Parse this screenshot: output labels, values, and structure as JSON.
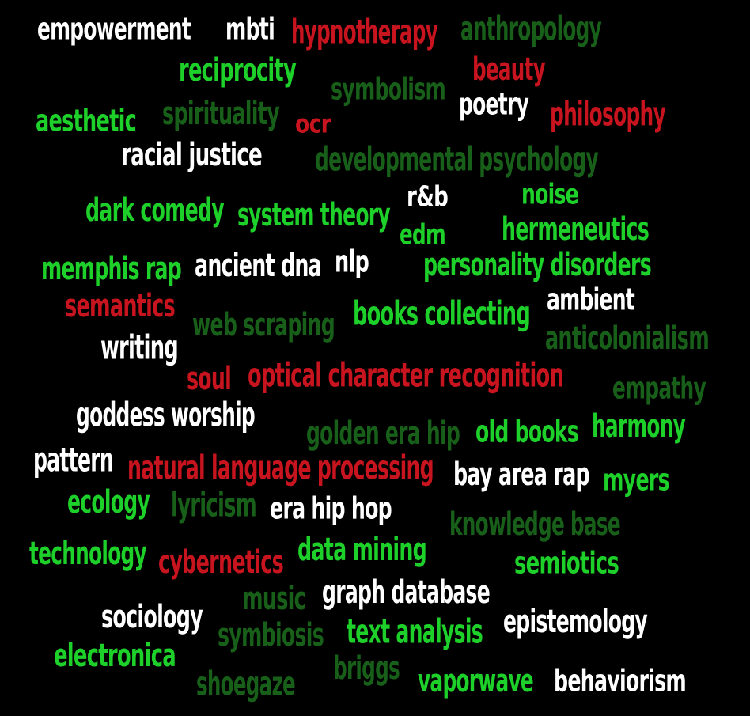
{
  "colors": {
    "background": "#000000",
    "white": "#ffffff",
    "red": "#c8141e",
    "lime": "#1ed02a",
    "dark": "#18601a"
  },
  "words": [
    {
      "id": "empowerment",
      "text": "empowerment",
      "color": "white"
    },
    {
      "id": "mbti",
      "text": "mbti",
      "color": "white"
    },
    {
      "id": "hypnotherapy",
      "text": "hypnotherapy",
      "color": "red"
    },
    {
      "id": "anthropology",
      "text": "anthropology",
      "color": "dark"
    },
    {
      "id": "reciprocity",
      "text": "reciprocity",
      "color": "lime"
    },
    {
      "id": "beauty",
      "text": "beauty",
      "color": "red"
    },
    {
      "id": "symbolism",
      "text": "symbolism",
      "color": "dark"
    },
    {
      "id": "poetry",
      "text": "poetry",
      "color": "white"
    },
    {
      "id": "aesthetic",
      "text": "aesthetic",
      "color": "lime"
    },
    {
      "id": "spirituality",
      "text": "spirituality",
      "color": "dark"
    },
    {
      "id": "ocr",
      "text": "ocr",
      "color": "red"
    },
    {
      "id": "philosophy",
      "text": "philosophy",
      "color": "red"
    },
    {
      "id": "racial-justice",
      "text": "racial justice",
      "color": "white"
    },
    {
      "id": "developmental-psychology",
      "text": "developmental psychology",
      "color": "dark"
    },
    {
      "id": "rnb",
      "text": "r&b",
      "color": "white"
    },
    {
      "id": "noise",
      "text": "noise",
      "color": "lime"
    },
    {
      "id": "dark-comedy",
      "text": "dark comedy",
      "color": "lime"
    },
    {
      "id": "system-theory",
      "text": "system theory",
      "color": "lime"
    },
    {
      "id": "edm",
      "text": "edm",
      "color": "lime"
    },
    {
      "id": "hermeneutics",
      "text": "hermeneutics",
      "color": "lime"
    },
    {
      "id": "memphis-rap",
      "text": "memphis rap",
      "color": "lime"
    },
    {
      "id": "ancient-dna",
      "text": "ancient dna",
      "color": "white"
    },
    {
      "id": "nlp",
      "text": "nlp",
      "color": "white"
    },
    {
      "id": "personality-disorders",
      "text": "personality disorders",
      "color": "lime"
    },
    {
      "id": "semantics",
      "text": "semantics",
      "color": "red"
    },
    {
      "id": "ambient",
      "text": "ambient",
      "color": "white"
    },
    {
      "id": "web-scraping",
      "text": "web scraping",
      "color": "dark"
    },
    {
      "id": "books-collecting",
      "text": "books collecting",
      "color": "lime"
    },
    {
      "id": "writing",
      "text": "writing",
      "color": "white"
    },
    {
      "id": "anticolonialism",
      "text": "anticolonialism",
      "color": "dark"
    },
    {
      "id": "soul",
      "text": "soul",
      "color": "red"
    },
    {
      "id": "optical-character-recognition",
      "text": "optical character recognition",
      "color": "red"
    },
    {
      "id": "empathy",
      "text": "empathy",
      "color": "dark"
    },
    {
      "id": "goddess-worship",
      "text": "goddess worship",
      "color": "white"
    },
    {
      "id": "golden-era-hip",
      "text": "golden era hip",
      "color": "dark"
    },
    {
      "id": "old-books",
      "text": "old books",
      "color": "lime"
    },
    {
      "id": "harmony",
      "text": "harmony",
      "color": "lime"
    },
    {
      "id": "pattern",
      "text": "pattern",
      "color": "white"
    },
    {
      "id": "natural-language-processing",
      "text": "natural language processing",
      "color": "red"
    },
    {
      "id": "bay-area-rap",
      "text": "bay area rap",
      "color": "white"
    },
    {
      "id": "myers",
      "text": "myers",
      "color": "lime"
    },
    {
      "id": "ecology",
      "text": "ecology",
      "color": "lime"
    },
    {
      "id": "lyricism",
      "text": "lyricism",
      "color": "dark"
    },
    {
      "id": "era-hip-hop",
      "text": "era hip hop",
      "color": "white"
    },
    {
      "id": "knowledge-base",
      "text": "knowledge base",
      "color": "dark"
    },
    {
      "id": "technology",
      "text": "technology",
      "color": "lime"
    },
    {
      "id": "cybernetics",
      "text": "cybernetics",
      "color": "red"
    },
    {
      "id": "data-mining",
      "text": "data mining",
      "color": "lime"
    },
    {
      "id": "semiotics",
      "text": "semiotics",
      "color": "lime"
    },
    {
      "id": "music",
      "text": "music",
      "color": "dark"
    },
    {
      "id": "graph-database",
      "text": "graph database",
      "color": "white"
    },
    {
      "id": "sociology",
      "text": "sociology",
      "color": "white"
    },
    {
      "id": "symbiosis",
      "text": "symbiosis",
      "color": "dark"
    },
    {
      "id": "text-analysis",
      "text": "text analysis",
      "color": "lime"
    },
    {
      "id": "epistemology",
      "text": "epistemology",
      "color": "white"
    },
    {
      "id": "electronica",
      "text": "electronica",
      "color": "lime"
    },
    {
      "id": "briggs",
      "text": "briggs",
      "color": "dark"
    },
    {
      "id": "shoegaze",
      "text": "shoegaze",
      "color": "dark"
    },
    {
      "id": "vaporwave",
      "text": "vaporwave",
      "color": "lime"
    },
    {
      "id": "behaviorism",
      "text": "behaviorism",
      "color": "white"
    }
  ]
}
